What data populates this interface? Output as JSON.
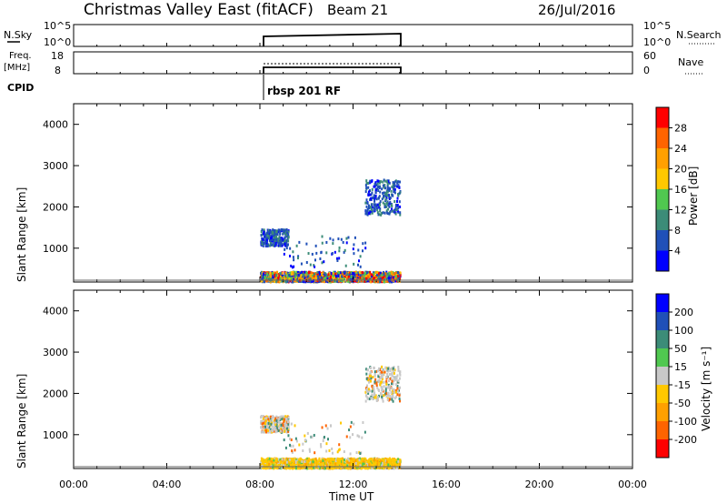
{
  "header": {
    "title": "Christmas Valley East (fitACF)",
    "beam": "Beam 21",
    "date": "26/Jul/2016"
  },
  "nsky_panel": {
    "left_label": "N.Sky",
    "left_ticks": [
      "10^5",
      "10^0"
    ],
    "right_ticks": [
      "10^5",
      "10^0"
    ],
    "right_label": "N.Search"
  },
  "freq_panel": {
    "left_label_1": "Freq.",
    "left_label_2": "[MHz]",
    "left_ticks": [
      "18",
      "8"
    ],
    "right_ticks": [
      "60",
      "0"
    ],
    "right_label": "Nave"
  },
  "cpid": {
    "label": "CPID",
    "program": "rbsp 201 RF"
  },
  "time_axis": {
    "label": "Time UT",
    "ticks": [
      "00:00",
      "04:00",
      "08:00",
      "12:00",
      "16:00",
      "20:00",
      "00:00"
    ]
  },
  "power_panel": {
    "ylabel": "Slant Range [km]",
    "yticks": [
      "1000",
      "2000",
      "3000",
      "4000"
    ],
    "colorbar_label": "Power [dB]",
    "colorbar_ticks": [
      "4",
      "8",
      "12",
      "16",
      "20",
      "24",
      "28"
    ],
    "colors": [
      "#0000ff",
      "#2050b8",
      "#3c8c78",
      "#50c850",
      "#ffc800",
      "#ffa000",
      "#ff6400",
      "#ff0000"
    ]
  },
  "velocity_panel": {
    "ylabel": "Slant Range [km]",
    "yticks": [
      "1000",
      "2000",
      "3000",
      "4000"
    ],
    "colorbar_label": "Velocity [m s⁻¹]",
    "colorbar_ticks": [
      "-200",
      "-100",
      "-50",
      "-15",
      "15",
      "50",
      "100",
      "200"
    ],
    "colors": [
      "#ff0000",
      "#ff6400",
      "#ffa000",
      "#ffc800",
      "#c8c8c8",
      "#50c850",
      "#3c8c78",
      "#2050b8",
      "#0000ff"
    ]
  },
  "chart_data": {
    "type": "heatmap",
    "x_range_hours": [
      0,
      24
    ],
    "y_range_km": [
      180,
      4500
    ],
    "data_time_range_hours": [
      8,
      14
    ],
    "scatter_regions": [
      {
        "t": [
          8.0,
          14.0
        ],
        "r": [
          180,
          420
        ],
        "density": "high"
      },
      {
        "t": [
          8.0,
          9.2
        ],
        "r": [
          1050,
          1450
        ],
        "density": "medium"
      },
      {
        "t": [
          9.0,
          12.5
        ],
        "r": [
          500,
          1300
        ],
        "density": "low"
      },
      {
        "t": [
          12.5,
          14.0
        ],
        "r": [
          1800,
          2650
        ],
        "density": "medium"
      }
    ]
  }
}
